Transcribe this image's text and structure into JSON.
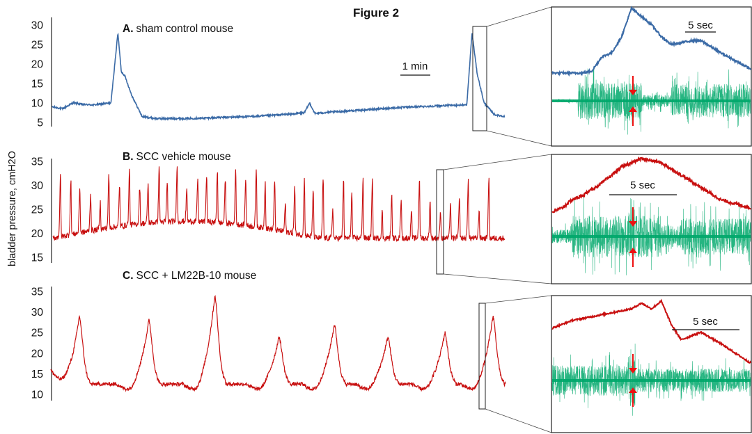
{
  "figure_title": "Figure 2",
  "y_axis_label": "bladder pressure, cmH2O",
  "colors": {
    "sham": "#3a6aa6",
    "scc": "#c81010",
    "emg": "#00a86b",
    "arrow": "#ee1111",
    "axis": "#222222"
  },
  "chart_data": [
    {
      "type": "line",
      "panel_letter": "A.",
      "panel_label": "sham control mouse",
      "ylabel": "bladder pressure, cmH2O",
      "ylim": [
        5,
        30
      ],
      "yticks": [
        "30",
        "25",
        "20",
        "15",
        "10",
        "5"
      ],
      "x_unit": "min",
      "scale_bar_label": "1 min",
      "series": [
        {
          "x": [
            0,
            0.3,
            0.6,
            0.9,
            1.2,
            1.7,
            1.9,
            2.0,
            2.1,
            2.3,
            2.6,
            3.0,
            4.0,
            5.0,
            6.0,
            7.0,
            7.3,
            7.45,
            7.6,
            8.0,
            9.0,
            10.0,
            11.0,
            12.0,
            12.15,
            12.3,
            12.5,
            12.8,
            13.1
          ],
          "y": [
            9,
            8.5,
            10,
            9.6,
            9.5,
            10,
            28,
            18,
            17,
            12,
            6.5,
            6,
            6,
            6.3,
            6.6,
            7.2,
            7.5,
            10,
            7.3,
            7.6,
            8.2,
            8.8,
            9.2,
            9.5,
            28,
            17.5,
            10,
            7,
            6.5
          ]
        }
      ],
      "inset": {
        "scale_bar_label": "5 sec",
        "pressure_trace": {
          "x": [
            0,
            3,
            4,
            5,
            6,
            7,
            8,
            10,
            11,
            12,
            14,
            15,
            17,
            20
          ],
          "y": [
            12,
            12,
            12.5,
            16,
            17,
            21,
            28,
            24,
            21,
            19,
            20,
            20,
            17,
            13
          ]
        }
      }
    },
    {
      "type": "line",
      "panel_letter": "B.",
      "panel_label": "SCC vehicle mouse",
      "ylabel": "bladder pressure, cmH2O",
      "ylim": [
        15,
        35
      ],
      "yticks": [
        "35",
        "30",
        "25",
        "20",
        "15"
      ],
      "x_unit": "min",
      "cycles": {
        "x_start": 0.25,
        "interval": 0.29,
        "count": 45,
        "baseline": 19,
        "peak_amplitude": 10,
        "baseline_rise_max": 3.5
      },
      "inset": {
        "scale_bar_label": "5 sec",
        "pressure_trace": {
          "x": [
            0,
            1,
            2,
            3,
            5,
            7,
            9,
            11,
            13,
            15,
            17,
            20
          ],
          "y": [
            20,
            21,
            23,
            24,
            27,
            31,
            33,
            32,
            29,
            26,
            23,
            21
          ]
        }
      }
    },
    {
      "type": "line",
      "panel_letter": "C.",
      "panel_label": "SCC + LM22B-10 mouse",
      "ylabel": "bladder pressure, cmH2O",
      "ylim": [
        10,
        35
      ],
      "yticks": [
        "35",
        "30",
        "25",
        "20",
        "15",
        "10"
      ],
      "x_unit": "min",
      "cycles": {
        "peak_positions": [
          1.6,
          5.5,
          9.2,
          12.8,
          15.9,
          18.9,
          22.1,
          24.8
        ],
        "peak_values": [
          29,
          28,
          34,
          24,
          27,
          24,
          25,
          29
        ],
        "baseline": 12.5
      },
      "inset": {
        "scale_bar_label": "5 sec",
        "pressure_trace": {
          "x": [
            0,
            2,
            4,
            6,
            8,
            9,
            10,
            11,
            12,
            13,
            15,
            17,
            20
          ],
          "y": [
            27,
            29,
            30,
            31,
            32,
            33.5,
            32,
            34,
            28,
            24,
            26,
            23,
            18
          ]
        }
      }
    }
  ]
}
